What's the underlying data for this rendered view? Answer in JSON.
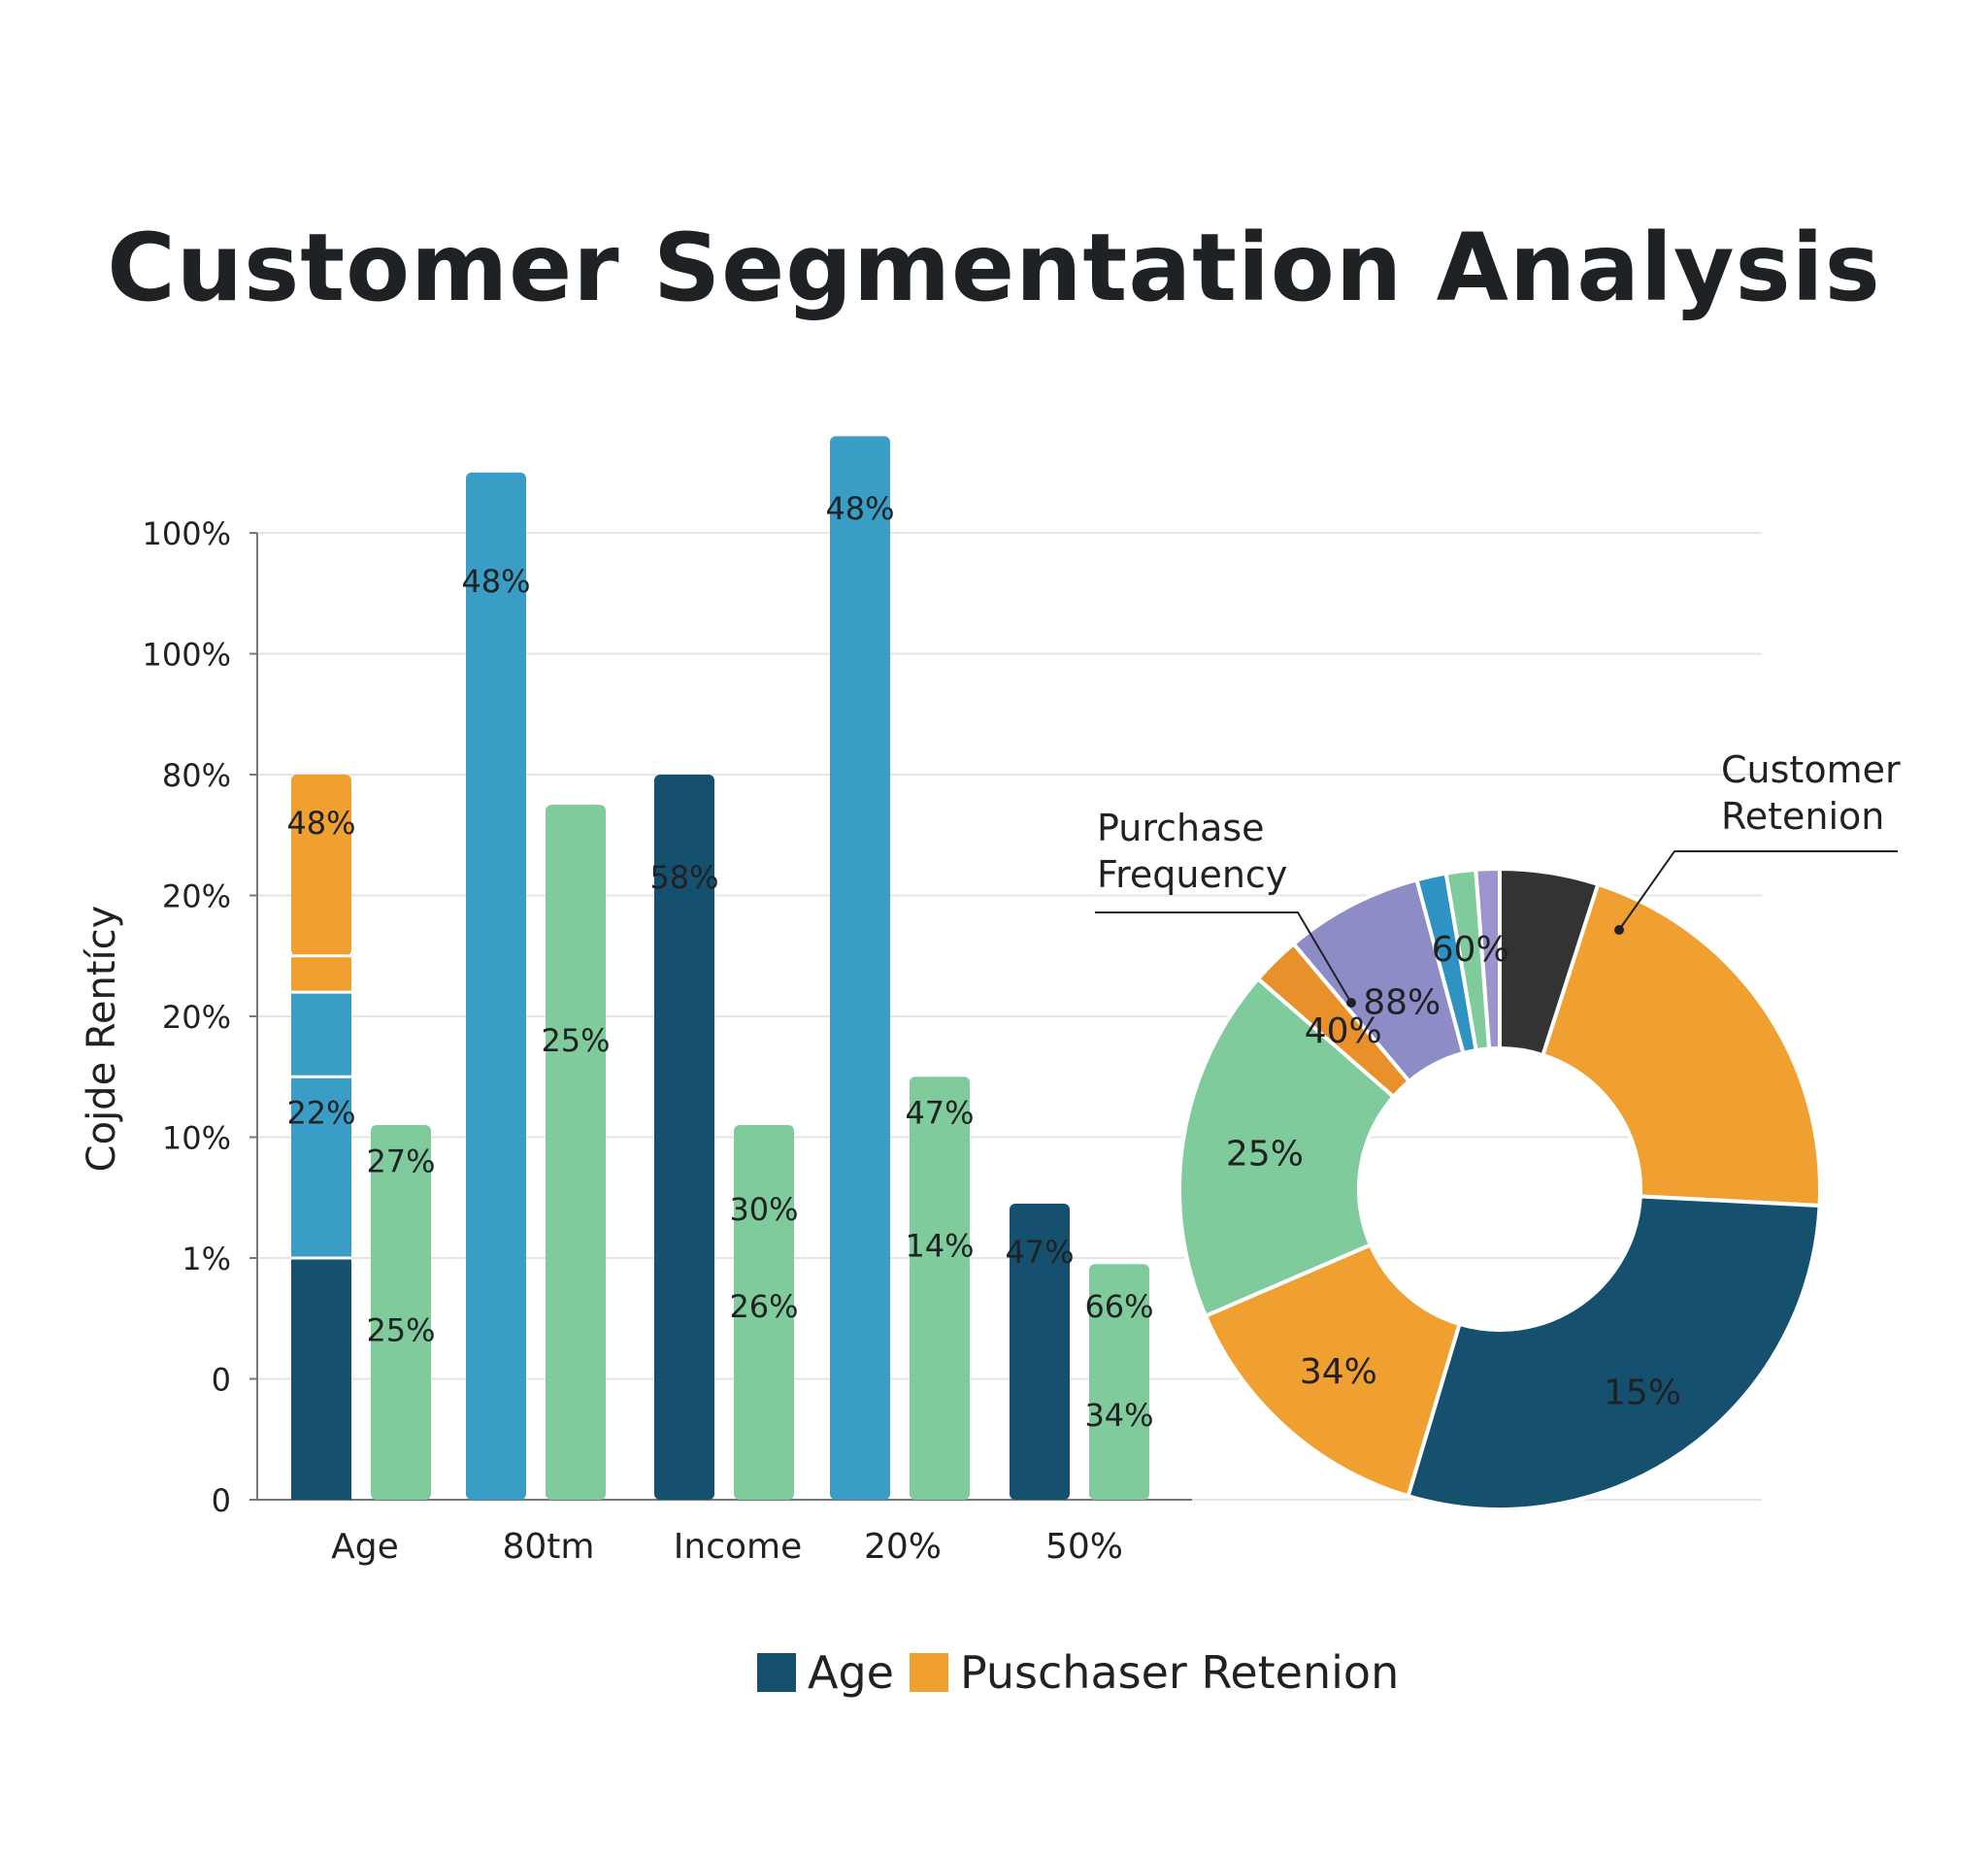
{
  "chart_data": [
    {
      "type": "bar",
      "title": "Customer Segmentation Analysis",
      "ylabel": "Cojde Rentícy",
      "xlabel": "",
      "y_tick_labels": [
        "0",
        "0",
        "1%",
        "10%",
        "20%",
        "20%",
        "80%",
        "100%",
        "100%"
      ],
      "categories": [
        "Age",
        "80tm",
        "Income",
        "20%",
        "50%"
      ],
      "grid": true,
      "ylim": [
        0,
        8
      ],
      "series_colors": {
        "dark_blue": "#16506f",
        "blue": "#3a9dc6",
        "orange": "#f0a030",
        "green": "#7fcb9c"
      },
      "bars": [
        {
          "category": "Age",
          "slot": 0,
          "segments": [
            {
              "from": 0,
              "to": 2.0,
              "color": "dark_blue"
            },
            {
              "from": 2.0,
              "to": 3.5,
              "color": "blue"
            },
            {
              "from": 3.5,
              "to": 4.2,
              "color": "blue"
            },
            {
              "from": 4.2,
              "to": 4.5,
              "color": "orange"
            },
            {
              "from": 4.5,
              "to": 6.0,
              "color": "orange"
            }
          ],
          "labels": [
            {
              "text": "48%",
              "y": 5.6
            },
            {
              "text": "22%",
              "y": 3.2
            }
          ]
        },
        {
          "category": "Age",
          "slot": 1,
          "segments": [
            {
              "from": 0,
              "to": 3.1,
              "color": "green"
            }
          ],
          "labels": [
            {
              "text": "27%",
              "y": 2.8
            },
            {
              "text": "25%",
              "y": 1.4
            }
          ]
        },
        {
          "category": "80tm",
          "slot": 0,
          "segments": [
            {
              "from": 0,
              "to": 8.5,
              "color": "blue"
            }
          ],
          "labels": [
            {
              "text": "48%",
              "y": 7.6
            }
          ]
        },
        {
          "category": "80tm",
          "slot": 1,
          "segments": [
            {
              "from": 0,
              "to": 5.75,
              "color": "green"
            }
          ],
          "labels": [
            {
              "text": "25%",
              "y": 3.8
            }
          ]
        },
        {
          "category": "Income",
          "slot": 0,
          "segments": [
            {
              "from": 0,
              "to": 6.0,
              "color": "dark_blue"
            }
          ],
          "labels": [
            {
              "text": "58%",
              "y": 5.15
            }
          ]
        },
        {
          "category": "Income",
          "slot": 1,
          "segments": [
            {
              "from": 0,
              "to": 3.1,
              "color": "green"
            }
          ],
          "labels": [
            {
              "text": "30%",
              "y": 2.4
            },
            {
              "text": "26%",
              "y": 1.6
            }
          ]
        },
        {
          "category": "20%",
          "slot": 0,
          "segments": [
            {
              "from": 0,
              "to": 8.8,
              "color": "blue"
            }
          ],
          "labels": [
            {
              "text": "48%",
              "y": 8.2
            }
          ]
        },
        {
          "category": "20%",
          "slot": 1,
          "segments": [
            {
              "from": 0,
              "to": 3.5,
              "color": "green"
            }
          ],
          "labels": [
            {
              "text": "47%",
              "y": 3.2
            },
            {
              "text": "14%",
              "y": 2.1
            }
          ]
        },
        {
          "category": "50%",
          "slot": 0,
          "segments": [
            {
              "from": 0,
              "to": 2.45,
              "color": "dark_blue"
            }
          ],
          "labels": [
            {
              "text": "47%",
              "y": 2.05
            }
          ]
        },
        {
          "category": "50%",
          "slot": 1,
          "segments": [
            {
              "from": 0,
              "to": 1.95,
              "color": "green"
            }
          ],
          "labels": [
            {
              "text": "66%",
              "y": 1.6
            },
            {
              "text": "34%",
              "y": 0.7
            }
          ]
        }
      ],
      "legend": {
        "placement": "bottom-center",
        "entries": [
          {
            "name": "Age",
            "color": "#16506f"
          },
          {
            "name": "Puschaser Retenion",
            "color": "#f0a030"
          }
        ]
      }
    },
    {
      "type": "pie",
      "donut": true,
      "slices": [
        {
          "value": 5,
          "color": "#333333",
          "label": ""
        },
        {
          "value": 21,
          "color": "#f0a030",
          "label": ""
        },
        {
          "value": 29,
          "color": "#16506f",
          "label": "15%"
        },
        {
          "value": 14,
          "color": "#f0a030",
          "label": "34%"
        },
        {
          "value": 18,
          "color": "#7fcb9c",
          "label": "25%"
        },
        {
          "value": 2.5,
          "color": "#e8902a",
          "label": "40%"
        },
        {
          "value": 7,
          "color": "#8e8cc6",
          "label": "88%"
        },
        {
          "value": 1.5,
          "color": "#2e93c2",
          "label": ""
        },
        {
          "value": 1.5,
          "color": "#7fcb9c",
          "label": "60%"
        },
        {
          "value": 1.2,
          "color": "#9b94cf",
          "label": ""
        }
      ],
      "annotations": [
        {
          "text_lines": [
            "Customer",
            "Retenion"
          ]
        },
        {
          "text_lines": [
            "Purchase",
            "Frequency"
          ]
        }
      ]
    }
  ]
}
